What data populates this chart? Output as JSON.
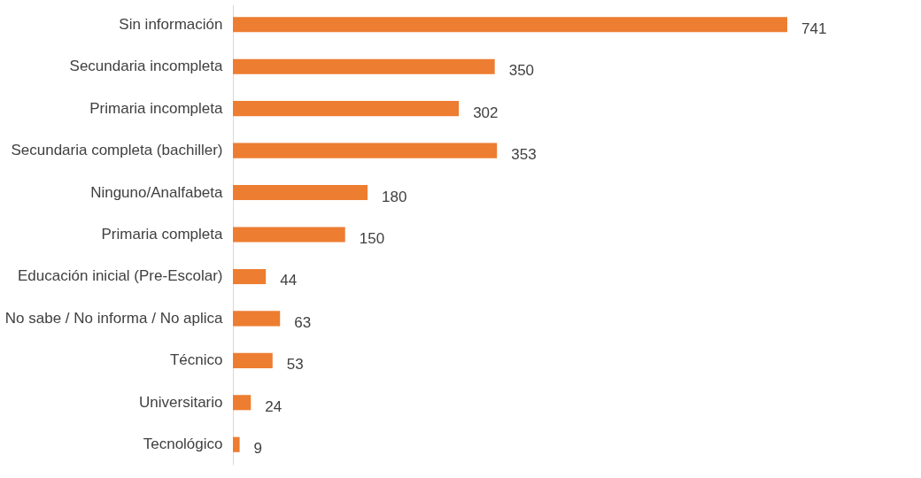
{
  "chart_data": {
    "type": "bar",
    "orientation": "horizontal",
    "data_labels": true,
    "grid": false,
    "tick_labels": "y",
    "categories": [
      "Sin información",
      "Secundaria incompleta",
      "Primaria incompleta",
      "Secundaria completa (bachiller)",
      "Ninguno/Analfabeta",
      "Primaria completa",
      "Educación inicial (Pre-Escolar)",
      "No sabe / No informa / No aplica",
      "Técnico",
      "Universitario",
      "Tecnológico"
    ],
    "values": [
      741,
      350,
      302,
      353,
      180,
      150,
      44,
      63,
      53,
      24,
      9
    ],
    "color": "#ed7d31"
  }
}
